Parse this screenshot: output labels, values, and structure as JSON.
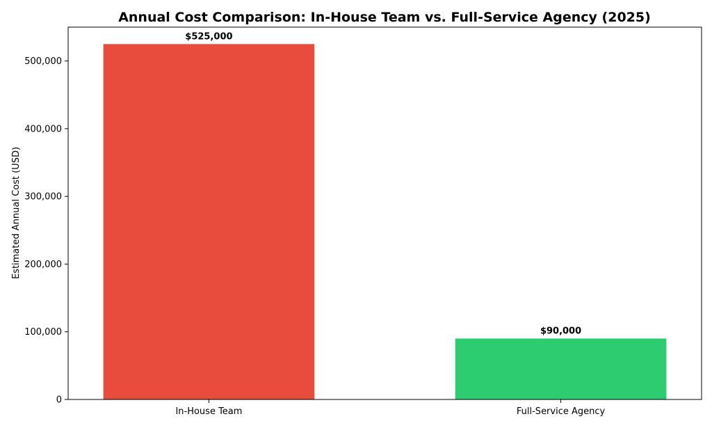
{
  "chart_data": {
    "type": "bar",
    "title": "Annual Cost Comparison: In-House Team vs. Full-Service Agency (2025)",
    "xlabel": "",
    "ylabel": "Estimated Annual Cost (USD)",
    "categories": [
      "In-House Team",
      "Full-Service Agency"
    ],
    "values": [
      525000,
      90000
    ],
    "data_labels": [
      "$525,000",
      "$90,000"
    ],
    "colors": [
      "#e74c3c",
      "#2ecc71"
    ],
    "ylim": [
      0,
      550000
    ],
    "yticks": [
      0,
      100000,
      200000,
      300000,
      400000,
      500000
    ],
    "ytick_labels": [
      "0",
      "100,000",
      "200,000",
      "300,000",
      "400,000",
      "500,000"
    ],
    "grid": false,
    "legend": false
  }
}
